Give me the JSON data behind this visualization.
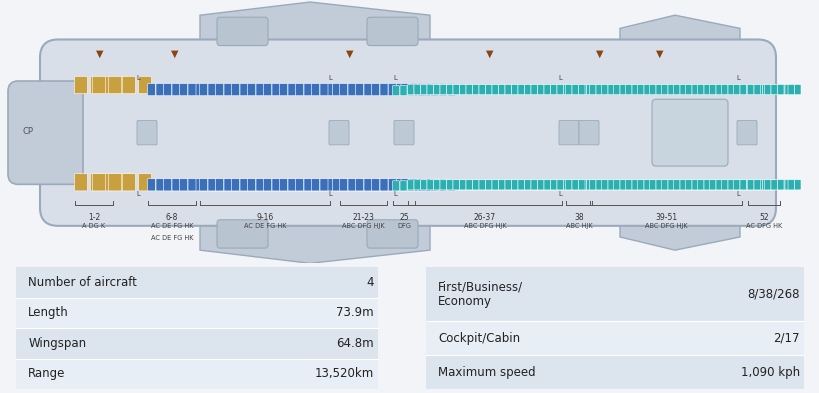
{
  "bg_color": "#f2f4f7",
  "fuselage_fill": "#d8dfe8",
  "fuselage_edge": "#9aaabb",
  "wing_fill": "#c2ccd8",
  "wing_edge": "#9aaabb",
  "first_color": "#c8a040",
  "business_color": "#3a6fba",
  "economy_color": "#2ab0b0",
  "seat_edge": "#ffffff",
  "arrow_color": "#8b4513",
  "text_color": "#333333",
  "label_color": "#444444",
  "table_left": [
    [
      "Number of aircraft",
      "4"
    ],
    [
      "Length",
      "73.9m"
    ],
    [
      "Wingspan",
      "64.8m"
    ],
    [
      "Range",
      "13,520km"
    ]
  ],
  "table_right_rows": [
    [
      "First/Business/\nEconomy",
      "8/38/268",
      1.6
    ],
    [
      "Cockpit/Cabin",
      "2/17",
      1.0
    ],
    [
      "Maximum speed",
      "1,090 kph",
      1.0
    ]
  ],
  "table_row_colors": [
    "#dce4ed",
    "#e8eef5"
  ],
  "divider_color": "#ffffff"
}
